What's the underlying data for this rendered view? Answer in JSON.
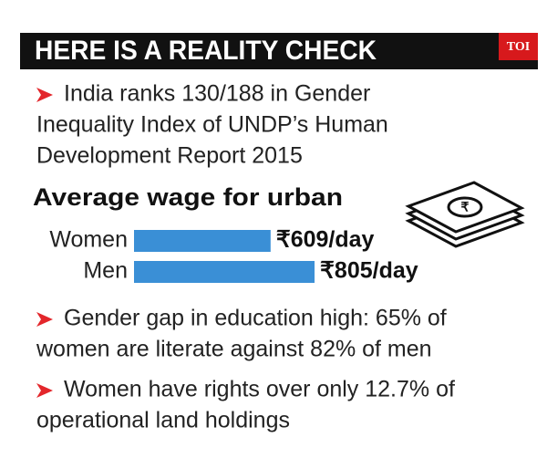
{
  "header": {
    "title": "HERE IS A REALITY CHECK",
    "logo": "TOI"
  },
  "bullets": [
    {
      "lines": [
        "India ranks 130/188 in Gender",
        "Inequality Index of UNDP’s Human",
        "Development Report 2015"
      ]
    },
    {
      "lines": [
        "Gender gap in education high: 65% of",
        "women are literate against 82% of men"
      ]
    },
    {
      "lines": [
        "Women have rights over only 12.7% of",
        "operational land holdings"
      ]
    }
  ],
  "chart_data": {
    "type": "bar",
    "orientation": "horizontal",
    "title": "Average wage for urban",
    "categories": [
      "Women",
      "Men"
    ],
    "values": [
      609,
      805
    ],
    "value_labels": [
      "₹609/day",
      "₹805/day"
    ],
    "color": "#3a8fd6"
  }
}
